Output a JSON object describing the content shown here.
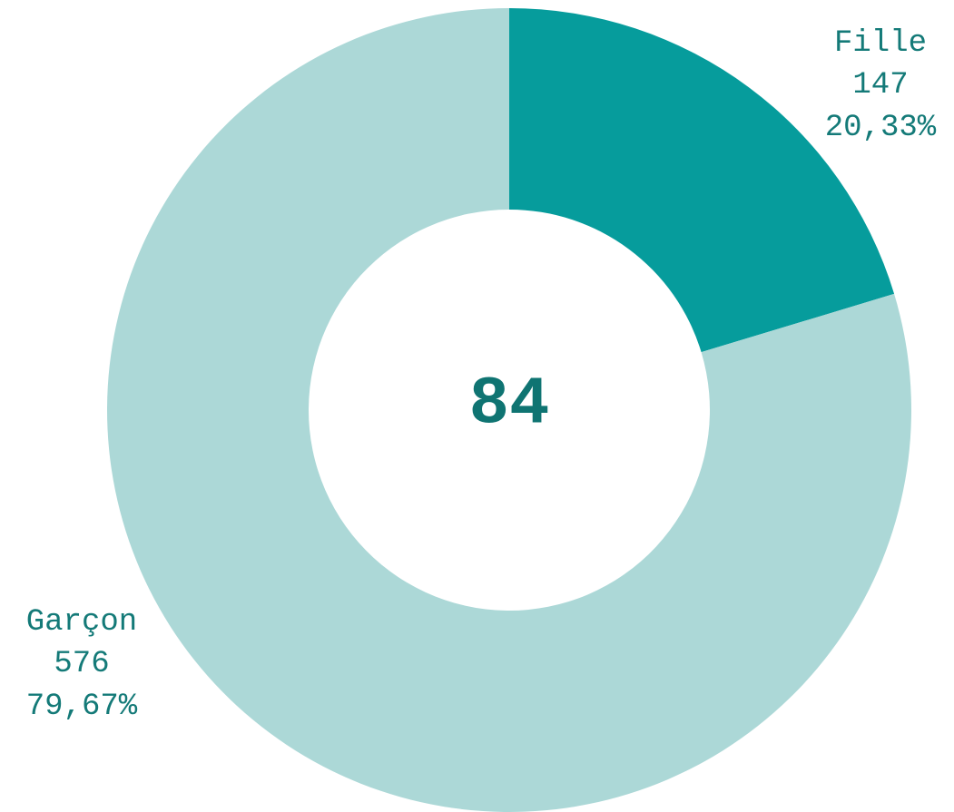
{
  "chart_data": {
    "type": "donut",
    "categories": [
      "Fille",
      "Garçon"
    ],
    "values": [
      147,
      576
    ],
    "percentages": [
      20.33,
      79.67
    ],
    "percentage_labels": [
      "20,33%",
      "79,67%"
    ],
    "colors": [
      "#069c9c",
      "#acd8d7"
    ],
    "center_value": 84
  }
}
